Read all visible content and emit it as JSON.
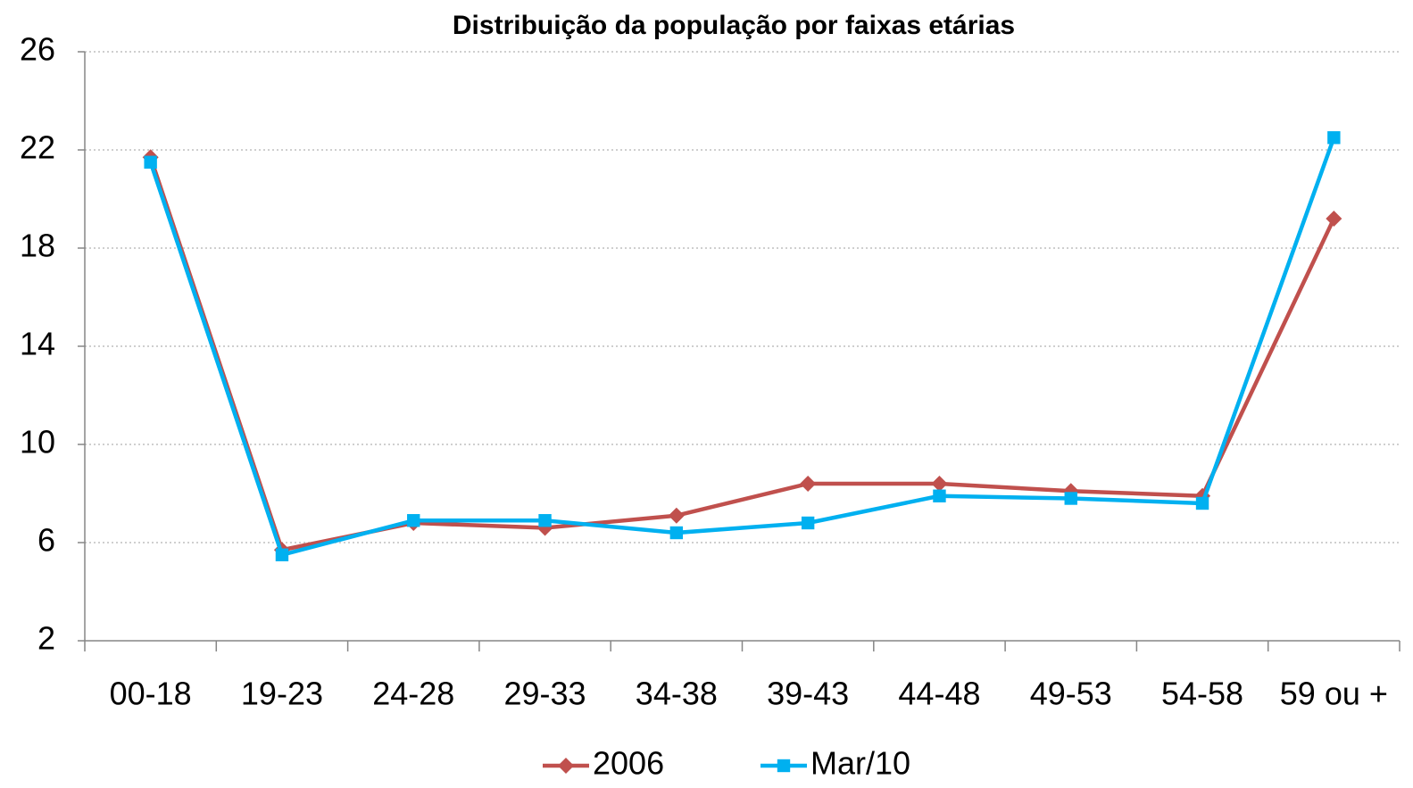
{
  "chart_data": {
    "type": "line",
    "title": "Distribuição da população por faixas etárias",
    "categories": [
      "00-18",
      "19-23",
      "24-28",
      "29-33",
      "34-38",
      "39-43",
      "44-48",
      "49-53",
      "54-58",
      "59 ou +"
    ],
    "series": [
      {
        "name": "2006",
        "color": "#c0504d",
        "marker": "diamond",
        "values": [
          21.7,
          5.7,
          6.8,
          6.6,
          7.1,
          8.4,
          8.4,
          8.1,
          7.9,
          19.2
        ]
      },
      {
        "name": "Mar/10",
        "color": "#00b0f0",
        "marker": "square",
        "values": [
          21.5,
          5.5,
          6.9,
          6.9,
          6.4,
          6.8,
          7.9,
          7.8,
          7.6,
          22.5
        ]
      }
    ],
    "ylim": [
      2,
      26
    ],
    "yticks": [
      2,
      6,
      10,
      14,
      18,
      22,
      26
    ],
    "grid": true,
    "legend": "bottom"
  }
}
